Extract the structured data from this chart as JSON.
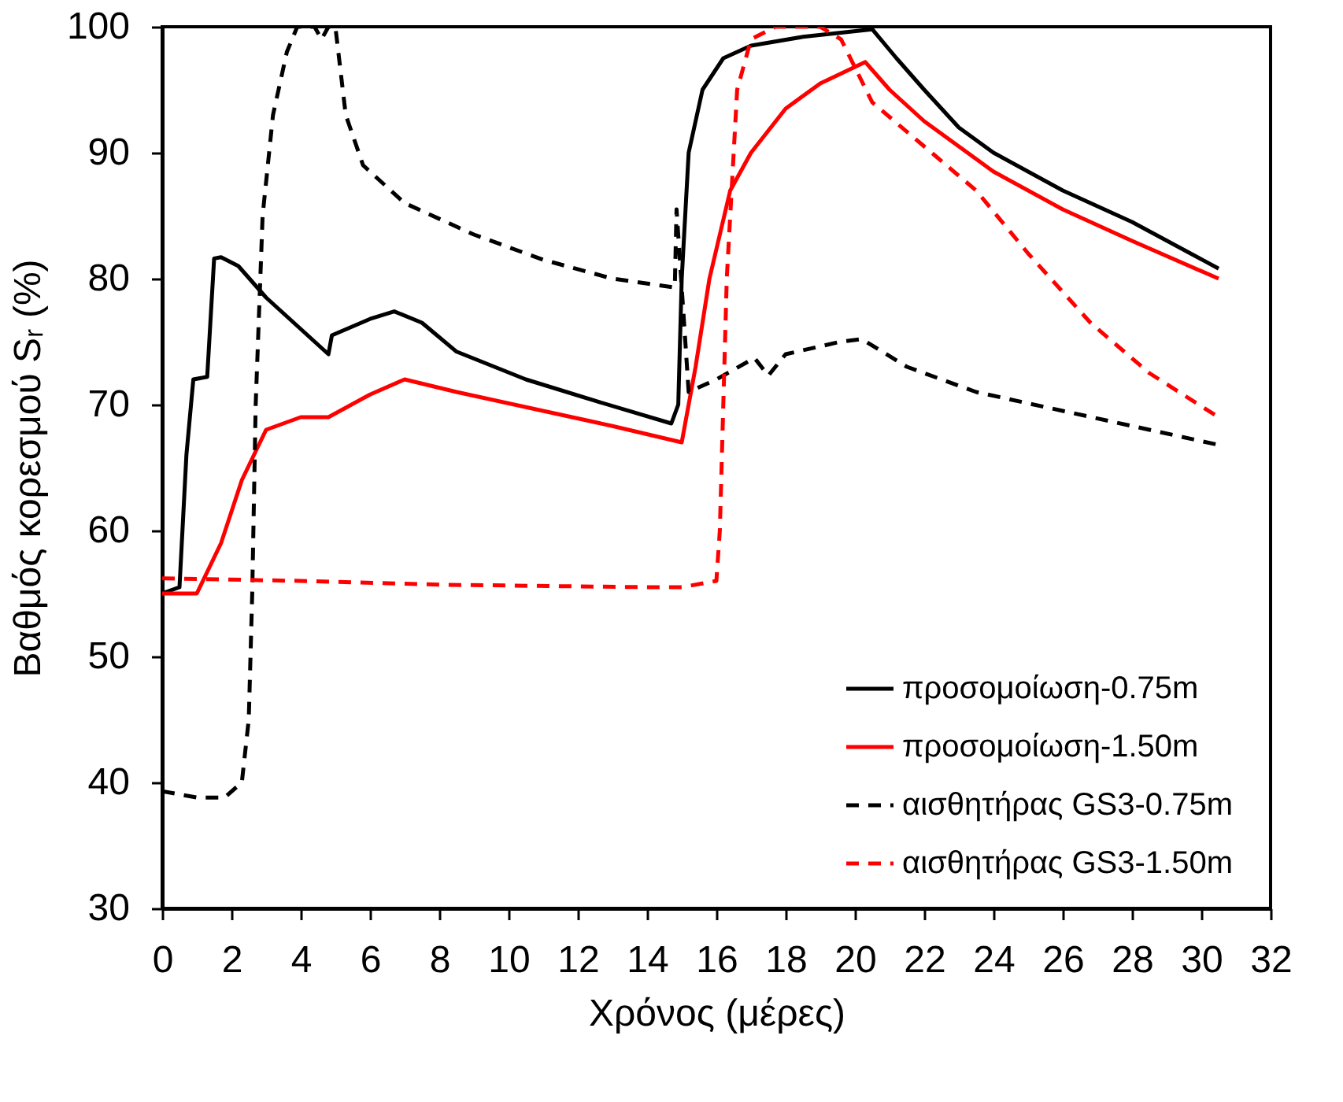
{
  "chart_data": {
    "type": "line",
    "xlabel": "Χρόνος (μέρες)",
    "ylabel": "Βαθμός κορεσμού Sᵣ (%)",
    "xlim": [
      0,
      32
    ],
    "xticks": [
      0,
      2,
      4,
      6,
      8,
      10,
      12,
      14,
      16,
      18,
      20,
      22,
      24,
      26,
      28,
      30,
      32
    ],
    "ylim": [
      30,
      100
    ],
    "yticks": [
      30,
      40,
      50,
      60,
      70,
      80,
      90,
      100
    ],
    "grid": false,
    "legend": "bottom right",
    "marker": "none",
    "series": [
      {
        "name": "προσομοίωση-0.75m",
        "color": "#000000",
        "line_style": "solid",
        "x": [
          0,
          0.5,
          0.7,
          0.9,
          1.3,
          1.5,
          1.7,
          2.2,
          3,
          4,
          4.8,
          4.9,
          6,
          6.7,
          7.5,
          8.5,
          10.5,
          12.5,
          14.7,
          14.9,
          15.0,
          15.2,
          15.6,
          16.2,
          17,
          18.5,
          20.5,
          21.2,
          22,
          23,
          24,
          26,
          28,
          30.5
        ],
        "values": [
          55,
          55.5,
          66,
          72,
          72.2,
          81.6,
          81.7,
          81,
          78.5,
          76,
          74,
          75.5,
          76.8,
          77.4,
          76.5,
          74.2,
          72,
          70.3,
          68.5,
          70,
          80,
          90,
          95,
          97.5,
          98.5,
          99.2,
          99.8,
          97.5,
          95,
          92,
          90,
          87,
          84.5,
          80.8
        ]
      },
      {
        "name": "προσομοίωση-1.50m",
        "color": "#ff0000",
        "line_style": "solid",
        "x": [
          0,
          1,
          1.7,
          2.3,
          3,
          4,
          4.8,
          6,
          7,
          8.5,
          11,
          13,
          15.0,
          15.4,
          15.8,
          16.4,
          17,
          18,
          19,
          20.3,
          21,
          22,
          24,
          26,
          28,
          30.5
        ],
        "values": [
          55,
          55,
          59,
          64,
          68,
          69,
          69,
          70.8,
          72,
          71,
          69.5,
          68.3,
          67,
          73,
          80,
          87,
          90,
          93.5,
          95.5,
          97.2,
          95,
          92.5,
          88.5,
          85.5,
          83,
          80
        ]
      },
      {
        "name": "αισθητήρας  GS3-0.75m",
        "color": "#000000",
        "line_style": "dashed",
        "x": [
          0,
          1,
          1.8,
          2.3,
          2.5,
          2.6,
          2.7,
          2.9,
          3.2,
          3.6,
          3.9,
          4.4,
          4.6,
          4.8,
          5.0,
          5.3,
          5.8,
          7,
          9,
          11,
          13,
          14.8,
          14.85,
          15.2,
          16,
          17.1,
          17.5,
          18,
          19.6,
          20.2,
          21.5,
          23.5,
          26,
          28.5,
          30.5
        ],
        "values": [
          39.3,
          38.8,
          38.8,
          40,
          45,
          55,
          70,
          85,
          93,
          98,
          100,
          100,
          99,
          100,
          100,
          93,
          89,
          86,
          83.5,
          81.5,
          80,
          79.3,
          85.5,
          71,
          72,
          73.7,
          72.3,
          74,
          75,
          75.2,
          73,
          71,
          69.5,
          68,
          66.8
        ]
      },
      {
        "name": "αισθητήρας  GS3-1.50m",
        "color": "#ff0000",
        "line_style": "dashed",
        "x": [
          0,
          4,
          8,
          14,
          15,
          16.0,
          16.1,
          16.3,
          16.6,
          17,
          17.7,
          19,
          19.6,
          20.5,
          22,
          23.5,
          25,
          26.8,
          28.5,
          30.5
        ],
        "values": [
          56.2,
          56,
          55.7,
          55.5,
          55.5,
          56,
          60,
          80,
          95,
          99,
          100,
          100,
          99,
          94,
          90.5,
          87,
          82,
          76.5,
          72.5,
          69
        ]
      }
    ]
  }
}
